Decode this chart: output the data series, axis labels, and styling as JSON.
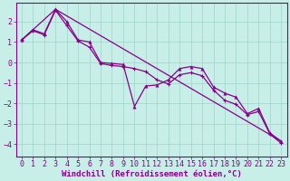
{
  "xlabel": "Windchill (Refroidissement éolien,°C)",
  "bg_color": "#c8eee8",
  "grid_color": "#a0d4cc",
  "line_color": "#880088",
  "linewidth": 0.9,
  "xlim": [
    -0.5,
    23.5
  ],
  "ylim": [
    -4.6,
    2.9
  ],
  "yticks": [
    2,
    1,
    0,
    -1,
    -2,
    -3,
    -4
  ],
  "xticks": [
    0,
    1,
    2,
    3,
    4,
    5,
    6,
    7,
    8,
    9,
    10,
    11,
    12,
    13,
    14,
    15,
    16,
    17,
    18,
    19,
    20,
    21,
    22,
    23
  ],
  "line1_x": [
    0,
    1,
    2,
    3,
    4,
    5,
    6,
    7,
    8,
    9,
    10,
    11,
    12,
    13,
    14,
    15,
    16,
    17,
    18,
    19,
    20,
    21,
    22,
    23
  ],
  "line1_y": [
    1.1,
    1.6,
    1.4,
    2.6,
    2.0,
    1.1,
    1.0,
    0.0,
    -0.05,
    -0.1,
    -2.15,
    -1.15,
    -1.1,
    -0.85,
    -0.3,
    -0.2,
    -0.3,
    -1.2,
    -1.5,
    -1.7,
    -2.5,
    -2.25,
    -3.45,
    -3.85
  ],
  "line2_x": [
    0,
    1,
    2,
    3,
    4,
    5,
    6,
    7,
    8,
    9,
    10,
    11,
    12,
    13,
    14,
    15,
    16,
    17,
    18,
    19,
    20,
    21,
    22,
    23
  ],
  "line2_y": [
    1.1,
    1.55,
    1.35,
    2.55,
    1.8,
    1.05,
    0.75,
    -0.05,
    -0.15,
    -0.2,
    -0.3,
    -0.45,
    -0.85,
    -1.05,
    -0.6,
    -0.5,
    -0.65,
    -1.35,
    -1.85,
    -2.05,
    -2.55,
    -2.4,
    -3.5,
    -3.95
  ],
  "line3_x": [
    0,
    3,
    23
  ],
  "line3_y": [
    1.1,
    2.6,
    -3.85
  ],
  "marker1": "^",
  "marker2": "P",
  "markersize": 2.5,
  "font_family": "monospace",
  "xlabel_fontsize": 6.5,
  "tick_fontsize": 6.0,
  "tick_color": "#880088",
  "axis_color": "#880088"
}
